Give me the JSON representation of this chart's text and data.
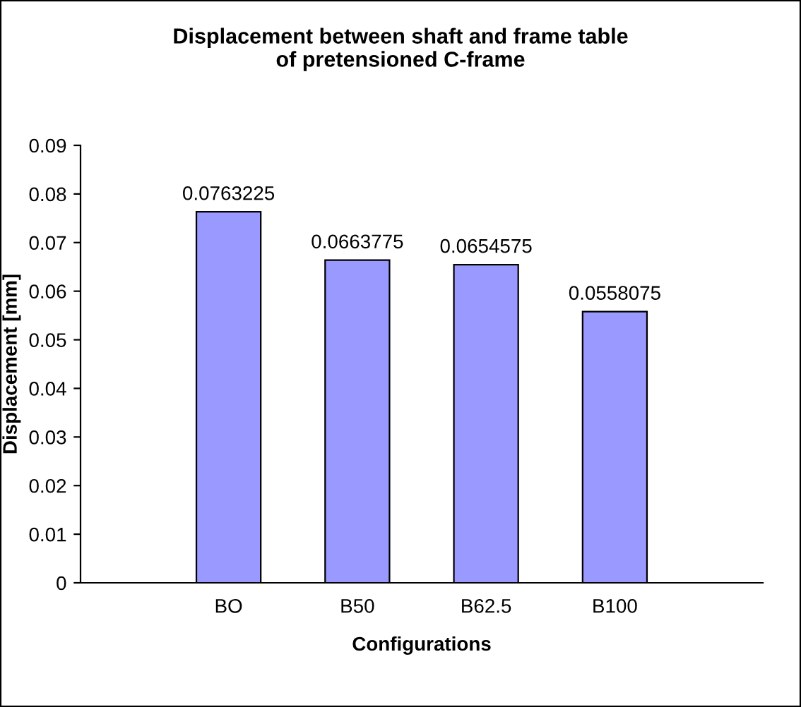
{
  "chart_data": {
    "type": "bar",
    "title": "Displacement between shaft and frame table\nof pretensioned C-frame",
    "xlabel": "Configurations",
    "ylabel": "Displacement [mm]",
    "categories": [
      "BO",
      "B50",
      "B62.5",
      "B100"
    ],
    "values": [
      0.0763225,
      0.0663775,
      0.0654575,
      0.0558075
    ],
    "color": "#9999ff",
    "data_labels": true,
    "ylim": [
      0,
      0.09
    ],
    "yticks": [
      {
        "value": 0,
        "label": "0"
      },
      0.01,
      0.02,
      0.03,
      0.04,
      0.05,
      0.06,
      0.07,
      0.08,
      0.09
    ],
    "grid": false,
    "legend": false
  }
}
